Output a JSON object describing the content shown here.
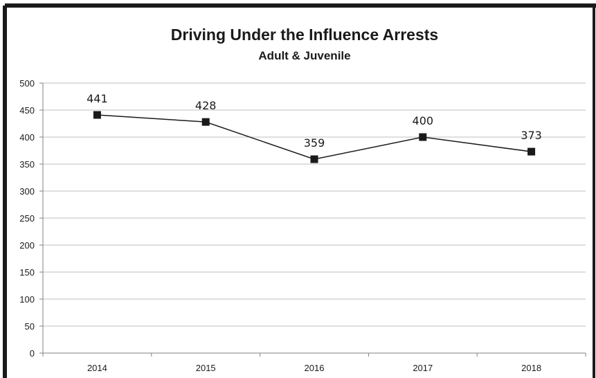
{
  "chart_data": {
    "type": "line",
    "title": "Driving Under the Influence Arrests",
    "subtitle": "Adult & Juvenile",
    "xlabel": "",
    "ylabel": "",
    "categories": [
      "2014",
      "2015",
      "2016",
      "2017",
      "2018"
    ],
    "series": [
      {
        "values": [
          441,
          428,
          359,
          400,
          373
        ]
      }
    ],
    "data_labels": [
      "441",
      "428",
      "359",
      "400",
      "373"
    ],
    "ylim": [
      0,
      500
    ],
    "yticks": [
      0,
      50,
      100,
      150,
      200,
      250,
      300,
      350,
      400,
      450,
      500
    ],
    "ytick_labels": [
      "0",
      "50",
      "100",
      "150",
      "200",
      "250",
      "300",
      "350",
      "400",
      "450",
      "500"
    ],
    "grid": "horizontal",
    "legend": "none",
    "marker": "square",
    "colors": {
      "line": "#1a1a1a",
      "marker": "#1a1a1a",
      "grid": "#bfbfbf",
      "frame": "#1a1a1a"
    }
  }
}
